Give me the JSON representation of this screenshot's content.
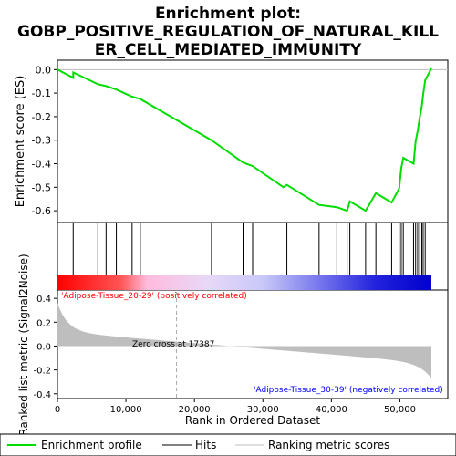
{
  "chart_data": {
    "type": "line",
    "title_lines": [
      "Enrichment plot:",
      "GOBP_POSITIVE_REGULATION_OF_NATURAL_KILL",
      "ER_CELL_MEDIATED_IMMUNITY"
    ],
    "xlabel": "Rank in Ordered Dataset",
    "ylabel_top": "Enrichment score (ES)",
    "ylabel_bottom": "Ranked list metric (Signal2Noise)",
    "x_range": [
      0,
      57000
    ],
    "es_ylim": [
      -0.65,
      0.04
    ],
    "metric_ylim": [
      -0.44,
      0.47
    ],
    "es_ticks": [
      0.0,
      -0.1,
      -0.2,
      -0.3,
      -0.4,
      -0.5,
      -0.6
    ],
    "es_tick_labels": [
      "0.0",
      "-0.1",
      "-0.2",
      "-0.3",
      "-0.4",
      "-0.5",
      "-0.6"
    ],
    "metric_ticks": [
      0.4,
      0.2,
      0.0,
      -0.2,
      -0.4
    ],
    "metric_tick_labels": [
      "0.4",
      "0.2",
      "0.0",
      "-0.2",
      "-0.4"
    ],
    "x_ticks": [
      0,
      10000,
      20000,
      30000,
      40000,
      50000
    ],
    "x_tick_labels": [
      "0",
      "10,000",
      "20,000",
      "30,000",
      "40,000",
      "50,000"
    ],
    "grid": false,
    "n_genes": 54600,
    "hits": [
      2300,
      5900,
      7100,
      8600,
      10900,
      12100,
      22500,
      27100,
      28500,
      33500,
      38200,
      40800,
      42300,
      42700,
      45000,
      46500,
      48800,
      49900,
      50200,
      50500,
      52000,
      52300,
      52600,
      52900,
      53200,
      53400,
      53700
    ],
    "es_curve": {
      "x": [
        0,
        2300,
        2300,
        5900,
        7100,
        8600,
        10900,
        12100,
        22500,
        27100,
        28500,
        33000,
        33500,
        38200,
        40800,
        42300,
        42700,
        45000,
        46500,
        48800,
        49900,
        50200,
        50500,
        52000,
        52300,
        52600,
        52900,
        53200,
        53400,
        53700,
        54600
      ],
      "y": [
        0.0,
        -0.035,
        -0.012,
        -0.062,
        -0.07,
        -0.085,
        -0.115,
        -0.125,
        -0.3,
        -0.395,
        -0.41,
        -0.5,
        -0.49,
        -0.575,
        -0.585,
        -0.6,
        -0.56,
        -0.6,
        -0.525,
        -0.565,
        -0.505,
        -0.42,
        -0.375,
        -0.4,
        -0.305,
        -0.26,
        -0.205,
        -0.155,
        -0.105,
        -0.045,
        0.005
      ]
    },
    "zero_cross_label": "Zero cross at 17387",
    "zero_cross": 17387,
    "pos_label": "'Adipose-Tissue_20-29' (positively correlated)",
    "neg_label": "'Adipose-Tissue_30-39' (negatively correlated)",
    "legend": [
      "Enrichment profile",
      "Hits",
      "Ranking metric scores"
    ],
    "colors": {
      "es_line": "#00dd00",
      "hits": "#000000",
      "metric_fill": "#bebebe",
      "pos_text": "#ff0000",
      "neg_text": "#0000ff",
      "zero_line": "#bbbbbb"
    }
  }
}
